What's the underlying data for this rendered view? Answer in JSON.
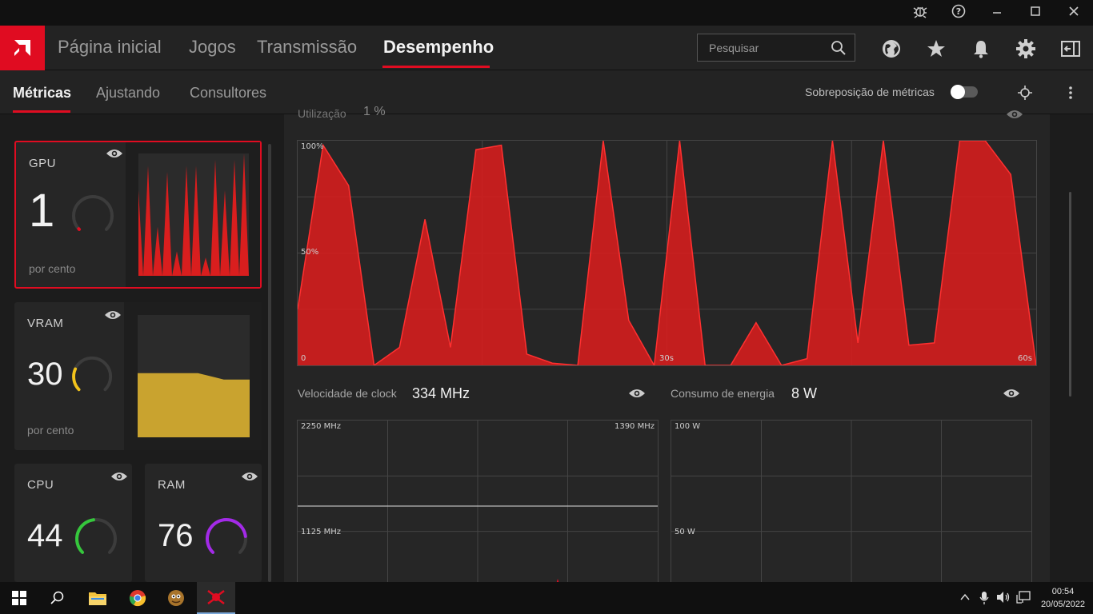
{
  "topnav": {
    "items": [
      "Página inicial",
      "Jogos",
      "Transmissão",
      "Desempenho"
    ],
    "active": "Desempenho",
    "search_placeholder": "Pesquisar"
  },
  "subnav": {
    "items": [
      "Métricas",
      "Ajustando",
      "Consultores"
    ],
    "active": "Métricas",
    "overlay_label": "Sobreposição de métricas",
    "overlay_enabled": false
  },
  "cards": {
    "gpu": {
      "title": "GPU",
      "value": "1",
      "unit": "por cento",
      "gauge_color": "#e00c21",
      "gauge_fraction": 0.01
    },
    "vram": {
      "title": "VRAM",
      "value": "30",
      "unit": "por cento",
      "gauge_color": "#f2c31b",
      "gauge_fraction": 0.3
    },
    "cpu": {
      "title": "CPU",
      "value": "44",
      "gauge_color": "#35c73c",
      "gauge_fraction": 0.44
    },
    "ram": {
      "title": "RAM",
      "value": "76",
      "gauge_color": "#a32ae8",
      "gauge_fraction": 0.76
    }
  },
  "main": {
    "utilization_label": "Utilização",
    "utilization_value": "1 %",
    "clock_label": "Velocidade de clock",
    "clock_value": "334 MHz",
    "power_label": "Consumo de energia",
    "power_value": "8 W",
    "util_axis": {
      "top": "100%",
      "mid": "50%",
      "zero": "0",
      "mid_x": "30s",
      "end_x": "60s"
    },
    "clock_axis": {
      "top": "2250 MHz",
      "mid": "1125 MHz",
      "ref": "1390 MHz"
    },
    "power_axis": {
      "top": "100 W",
      "mid": "50 W"
    }
  },
  "chart_data": [
    {
      "type": "area",
      "series": [
        {
          "values": [
            25,
            98,
            80,
            0,
            8,
            65,
            8,
            96,
            98,
            5,
            1,
            0,
            100,
            20,
            0,
            100,
            0,
            0,
            19,
            0,
            3,
            100,
            10,
            100,
            9,
            10,
            100,
            100,
            85,
            0
          ]
        }
      ],
      "x_unit": "s",
      "x_ticks": [
        "30s",
        "60s"
      ],
      "ylim": [
        0,
        100
      ],
      "y_ticks": [
        "0",
        "50%",
        "100%"
      ],
      "color": "#d91e1e",
      "grid": true
    },
    {
      "type": "area",
      "series": [
        {
          "values": [
            0,
            0,
            0,
            0,
            0,
            0,
            0,
            0,
            0,
            0
          ]
        }
      ],
      "ylim": [
        0,
        100
      ],
      "color": "#e8c235",
      "note_label": ""
    }
  ],
  "mini_gpu": [
    70,
    0,
    90,
    0,
    40,
    0,
    85,
    0,
    20,
    0,
    90,
    0,
    90,
    0,
    15,
    0,
    95,
    0,
    70,
    0,
    95,
    0,
    100,
    0
  ],
  "mini_vram": [
    30,
    30,
    30,
    30,
    30,
    30,
    30,
    30,
    29,
    28,
    27,
    27,
    27,
    27
  ],
  "taskbar": {
    "time": "00:54",
    "date": "20/05/2022"
  }
}
